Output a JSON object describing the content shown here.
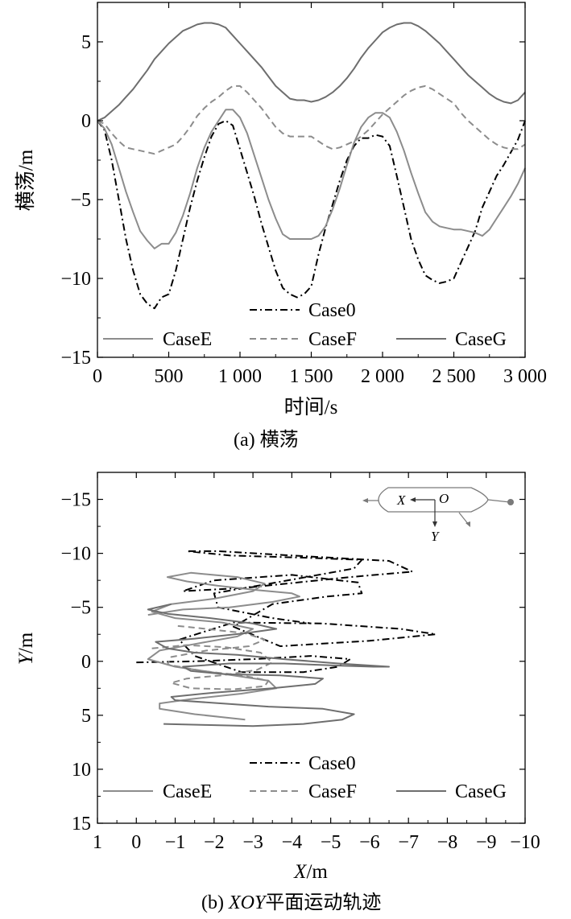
{
  "chart_data": [
    {
      "type": "line",
      "xlabel": "时间/s",
      "ylabel": "横荡/m",
      "caption": "(a) 横荡",
      "xlim": [
        0,
        3000
      ],
      "ylim": [
        -15,
        7.5
      ],
      "xticks": [
        0,
        500,
        1000,
        1500,
        2000,
        2500,
        3000
      ],
      "xtick_labels": [
        "0",
        "500",
        "1 000",
        "1 500",
        "2 000",
        "2 500",
        "3 000"
      ],
      "yticks": [
        5,
        0,
        -5,
        -10,
        -15
      ],
      "ytick_labels": [
        "5",
        "0",
        "−5",
        "−10",
        "−15"
      ],
      "grid": false,
      "legend_position": "bottom",
      "series": [
        {
          "name": "Case0",
          "style": "dash-dot",
          "color": "#000000",
          "x": [
            0,
            50,
            100,
            150,
            200,
            250,
            300,
            350,
            400,
            450,
            500,
            550,
            600,
            650,
            700,
            750,
            800,
            850,
            900,
            950,
            1000,
            1050,
            1100,
            1150,
            1200,
            1250,
            1300,
            1350,
            1400,
            1450,
            1500,
            1550,
            1600,
            1650,
            1700,
            1750,
            1800,
            1850,
            1900,
            1950,
            2000,
            2050,
            2100,
            2150,
            2200,
            2250,
            2300,
            2350,
            2400,
            2450,
            2500,
            2550,
            2600,
            2650,
            2700,
            2750,
            2800,
            2850,
            2900,
            2950,
            3000
          ],
          "y": [
            0,
            -0.6,
            -2.5,
            -5,
            -7.5,
            -9.5,
            -11,
            -11.6,
            -11.9,
            -11.2,
            -11,
            -9.5,
            -7.5,
            -5.5,
            -3.8,
            -2.3,
            -1,
            -0.2,
            0,
            -0.3,
            -1.8,
            -3.3,
            -4.8,
            -6.5,
            -8,
            -9.5,
            -10.6,
            -11,
            -11.2,
            -11,
            -10.5,
            -8.5,
            -6.8,
            -5.3,
            -3.8,
            -2.5,
            -1.6,
            -1.1,
            -1.1,
            -0.9,
            -1,
            -1.6,
            -3.5,
            -5.5,
            -7.5,
            -8.8,
            -9.8,
            -10.1,
            -10.3,
            -10.2,
            -10,
            -9,
            -8,
            -7,
            -5.5,
            -4.5,
            -3.5,
            -2.8,
            -2,
            -1.2,
            0
          ]
        },
        {
          "name": "CaseE",
          "style": "solid",
          "color": "#8c8c8c",
          "x": [
            0,
            50,
            100,
            150,
            200,
            250,
            300,
            350,
            400,
            450,
            500,
            550,
            600,
            650,
            700,
            750,
            800,
            850,
            900,
            950,
            1000,
            1050,
            1100,
            1150,
            1200,
            1250,
            1300,
            1350,
            1400,
            1450,
            1500,
            1550,
            1600,
            1650,
            1700,
            1750,
            1800,
            1850,
            1900,
            1950,
            2000,
            2050,
            2100,
            2150,
            2200,
            2250,
            2300,
            2350,
            2400,
            2450,
            2500,
            2550,
            2600,
            2650,
            2700,
            2750,
            2800,
            2850,
            2900,
            2950,
            3000
          ],
          "y": [
            0,
            -0.5,
            -1.5,
            -3,
            -4.5,
            -5.8,
            -7,
            -7.6,
            -8.1,
            -7.8,
            -7.8,
            -7.1,
            -6,
            -4.6,
            -3,
            -1.7,
            -0.7,
            0,
            0.7,
            0.7,
            0.2,
            -0.8,
            -2.2,
            -3.6,
            -5,
            -6.2,
            -7.2,
            -7.5,
            -7.5,
            -7.5,
            -7.5,
            -7.3,
            -6.7,
            -5.6,
            -4.3,
            -2.8,
            -1.4,
            -0.4,
            0.2,
            0.5,
            0.5,
            0.2,
            -0.7,
            -1.9,
            -3.3,
            -4.6,
            -5.8,
            -6.4,
            -6.7,
            -6.8,
            -6.9,
            -6.9,
            -7.0,
            -7.1,
            -7.3,
            -6.9,
            -6.2,
            -5.5,
            -4.8,
            -4,
            -3
          ]
        },
        {
          "name": "CaseF",
          "style": "dashed",
          "color": "#8c8c8c",
          "x": [
            0,
            50,
            100,
            150,
            200,
            250,
            300,
            350,
            400,
            450,
            500,
            550,
            600,
            650,
            700,
            750,
            800,
            850,
            900,
            950,
            1000,
            1050,
            1100,
            1150,
            1200,
            1250,
            1300,
            1350,
            1400,
            1450,
            1500,
            1550,
            1600,
            1650,
            1700,
            1750,
            1800,
            1850,
            1900,
            1950,
            2000,
            2050,
            2100,
            2150,
            2200,
            2250,
            2300,
            2350,
            2400,
            2450,
            2500,
            2550,
            2600,
            2650,
            2700,
            2750,
            2800,
            2850,
            2900,
            2950,
            3000
          ],
          "y": [
            0,
            -0.2,
            -0.8,
            -1.3,
            -1.7,
            -1.8,
            -1.9,
            -2,
            -2.1,
            -1.9,
            -1.7,
            -1.5,
            -1,
            -0.4,
            0.3,
            0.8,
            1.2,
            1.5,
            1.9,
            2.2,
            2.2,
            1.8,
            1.3,
            0.8,
            0.2,
            -0.4,
            -0.8,
            -1,
            -1,
            -1,
            -1,
            -1.3,
            -1.6,
            -1.8,
            -1.7,
            -1.5,
            -1.3,
            -1,
            -0.6,
            -0.1,
            0.4,
            0.8,
            1.2,
            1.6,
            1.9,
            2.1,
            2.2,
            2,
            1.7,
            1.4,
            1.1,
            0.5,
            0,
            -0.4,
            -0.8,
            -1.2,
            -1.5,
            -1.7,
            -1.8,
            -1.8,
            -1.5
          ]
        },
        {
          "name": "CaseG",
          "style": "solid",
          "color": "#6e6e6e",
          "x": [
            0,
            50,
            100,
            150,
            200,
            250,
            300,
            350,
            400,
            450,
            500,
            550,
            600,
            650,
            700,
            750,
            800,
            850,
            900,
            950,
            1000,
            1050,
            1100,
            1150,
            1200,
            1250,
            1300,
            1350,
            1400,
            1450,
            1500,
            1550,
            1600,
            1650,
            1700,
            1750,
            1800,
            1850,
            1900,
            1950,
            2000,
            2050,
            2100,
            2150,
            2200,
            2250,
            2300,
            2350,
            2400,
            2450,
            2500,
            2550,
            2600,
            2650,
            2700,
            2750,
            2800,
            2850,
            2900,
            2950,
            3000
          ],
          "y": [
            0,
            0.2,
            0.6,
            1.0,
            1.5,
            2.0,
            2.6,
            3.2,
            3.9,
            4.4,
            4.9,
            5.3,
            5.7,
            5.9,
            6.1,
            6.2,
            6.2,
            6.1,
            5.9,
            5.4,
            4.9,
            4.4,
            3.9,
            3.4,
            2.8,
            2.2,
            1.8,
            1.4,
            1.3,
            1.3,
            1.2,
            1.3,
            1.5,
            1.8,
            2.2,
            2.7,
            3.3,
            4,
            4.6,
            5.1,
            5.6,
            5.9,
            6.1,
            6.2,
            6.2,
            6.0,
            5.7,
            5.3,
            4.9,
            4.4,
            3.9,
            3.4,
            2.9,
            2.5,
            2.1,
            1.7,
            1.4,
            1.2,
            1.1,
            1.3,
            1.8
          ]
        }
      ]
    },
    {
      "type": "line",
      "xlabel": "X/m",
      "ylabel": "Y/m",
      "caption_prefix": "(b) ",
      "caption_italic": "XOY",
      "caption_rest": "平面运动轨迹",
      "xlim": [
        1,
        -10
      ],
      "ylim": [
        15,
        -17.5
      ],
      "xticks": [
        1,
        0,
        -1,
        -2,
        -3,
        -4,
        -5,
        -6,
        -7,
        -8,
        -9,
        -10
      ],
      "xtick_labels": [
        "1",
        "0",
        "−1",
        "−2",
        "−3",
        "−4",
        "−5",
        "−6",
        "−7",
        "−8",
        "−9",
        "−10"
      ],
      "yticks": [
        -15,
        -10,
        -5,
        0,
        5,
        10,
        15
      ],
      "ytick_labels": [
        "−15",
        "−10",
        "−5",
        "0",
        "5",
        "10",
        "15"
      ],
      "grid": false,
      "legend_position": "bottom",
      "inset_labels": {
        "x": "X",
        "o": "O",
        "y": "Y"
      },
      "series": [
        {
          "name": "Case0",
          "style": "dash-dot",
          "color": "#000000",
          "x": [
            0,
            -1.5,
            -3,
            -4.5,
            -5.5,
            -5.2,
            -4.3,
            -2.7,
            -1.5,
            -1.1,
            -2.5,
            -4.8,
            -6.8,
            -7.7,
            -6,
            -3.7,
            -2.5,
            -3.5,
            -4.9,
            -5.8,
            -5.7,
            -4,
            -2,
            -1.2,
            -2.8,
            -5.5,
            -7.1,
            -6.5,
            -4,
            -2.1,
            -1.3,
            -2.4,
            -4.3,
            -5.8,
            -5.6,
            -3.6,
            -2,
            -2.1,
            -3.5,
            -4.5
          ],
          "y": [
            0.1,
            0,
            -0.2,
            -0.5,
            -0.2,
            0.5,
            1,
            1,
            -0.5,
            -2,
            -3.6,
            -3.5,
            -3,
            -2.5,
            -1.9,
            -1.4,
            -3.2,
            -5.3,
            -6,
            -6.3,
            -7.3,
            -8,
            -7.5,
            -6.5,
            -6.8,
            -7.8,
            -8.3,
            -9.3,
            -9.8,
            -10.2,
            -10.2,
            -9.8,
            -9.6,
            -9.4,
            -8.6,
            -7.3,
            -6.3,
            -5,
            -4,
            -3.5
          ]
        },
        {
          "name": "CaseE",
          "style": "solid",
          "color": "#8c8c8c",
          "x": [
            -0.3,
            -1.2,
            -2.4,
            -3.5,
            -4.2,
            -4.0,
            -3.1,
            -2.1,
            -1.3,
            -0.8,
            -1.4,
            -2.6,
            -3.3,
            -3.0,
            -2.0,
            -0.9,
            -0.4,
            -1.0,
            -2.2,
            -3.0,
            -2.6,
            -1.5,
            -0.6,
            -0.3,
            -1.0,
            -2.3,
            -3.4,
            -3.6,
            -2.7,
            -1.4,
            -0.6,
            -0.6,
            -1.5,
            -2.8
          ],
          "y": [
            -4.3,
            -4.8,
            -5,
            -5.5,
            -6,
            -6.3,
            -6.6,
            -7,
            -7.4,
            -7.8,
            -8.2,
            -7.8,
            -7.2,
            -6.5,
            -5.8,
            -5.3,
            -4.6,
            -4,
            -3.6,
            -3,
            -2.3,
            -1.6,
            -1,
            -0.2,
            0.5,
            1.2,
            1.8,
            2.5,
            3,
            3.5,
            3.9,
            4.4,
            4.9,
            5.4
          ]
        },
        {
          "name": "CaseF",
          "style": "dashed",
          "color": "#8c8c8c",
          "x": [
            -0.4,
            -1.3,
            -2.3,
            -3.2,
            -3.5,
            -3.1,
            -2.2,
            -1.3,
            -0.9,
            -1.4,
            -2.5,
            -3.3,
            -3.4,
            -2.7,
            -1.7,
            -0.8,
            -0.9,
            -1.8,
            -2.9,
            -3.3,
            -2.8,
            -1.8,
            -1.0
          ],
          "y": [
            -1.2,
            -1.5,
            -1.3,
            -0.8,
            0.1,
            0.8,
            1.3,
            1.6,
            2,
            2.5,
            2.6,
            2.3,
            1.8,
            1.3,
            0.9,
            0.3,
            -0.4,
            -1,
            -1.4,
            -2,
            -2.6,
            -3,
            -3.3
          ]
        },
        {
          "name": "CaseG",
          "style": "solid",
          "color": "#6e6e6e",
          "x": [
            -0.7,
            -1.8,
            -3,
            -4.3,
            -5.3,
            -5.6,
            -4.8,
            -3.4,
            -2.2,
            -1,
            -0.9,
            -2,
            -3.5,
            -4.6,
            -4.8,
            -3.7,
            -2.3,
            -1.4,
            -1.2,
            -2.4,
            -3.8,
            -5.2,
            -6.1,
            -6.5,
            -5.2,
            -3.8,
            -2.6,
            -1.5,
            -0.8,
            -0.5,
            -1.5,
            -2.8,
            -3.6,
            -3,
            -1.9,
            -0.8,
            -0.3,
            -0.9
          ],
          "y": [
            5.8,
            5.9,
            6,
            5.8,
            5.4,
            4.9,
            4.4,
            4.2,
            3.9,
            3.6,
            3.3,
            2.9,
            2.5,
            2.1,
            1.6,
            1.3,
            1.2,
            0.9,
            0.5,
            0.2,
            0.2,
            0.4,
            0.5,
            0.5,
            0.2,
            -0.2,
            -0.6,
            -0.8,
            -1.2,
            -1.8,
            -2.1,
            -2.6,
            -3,
            -3.5,
            -4,
            -4.4,
            -4.8,
            -5.3
          ]
        }
      ]
    }
  ]
}
